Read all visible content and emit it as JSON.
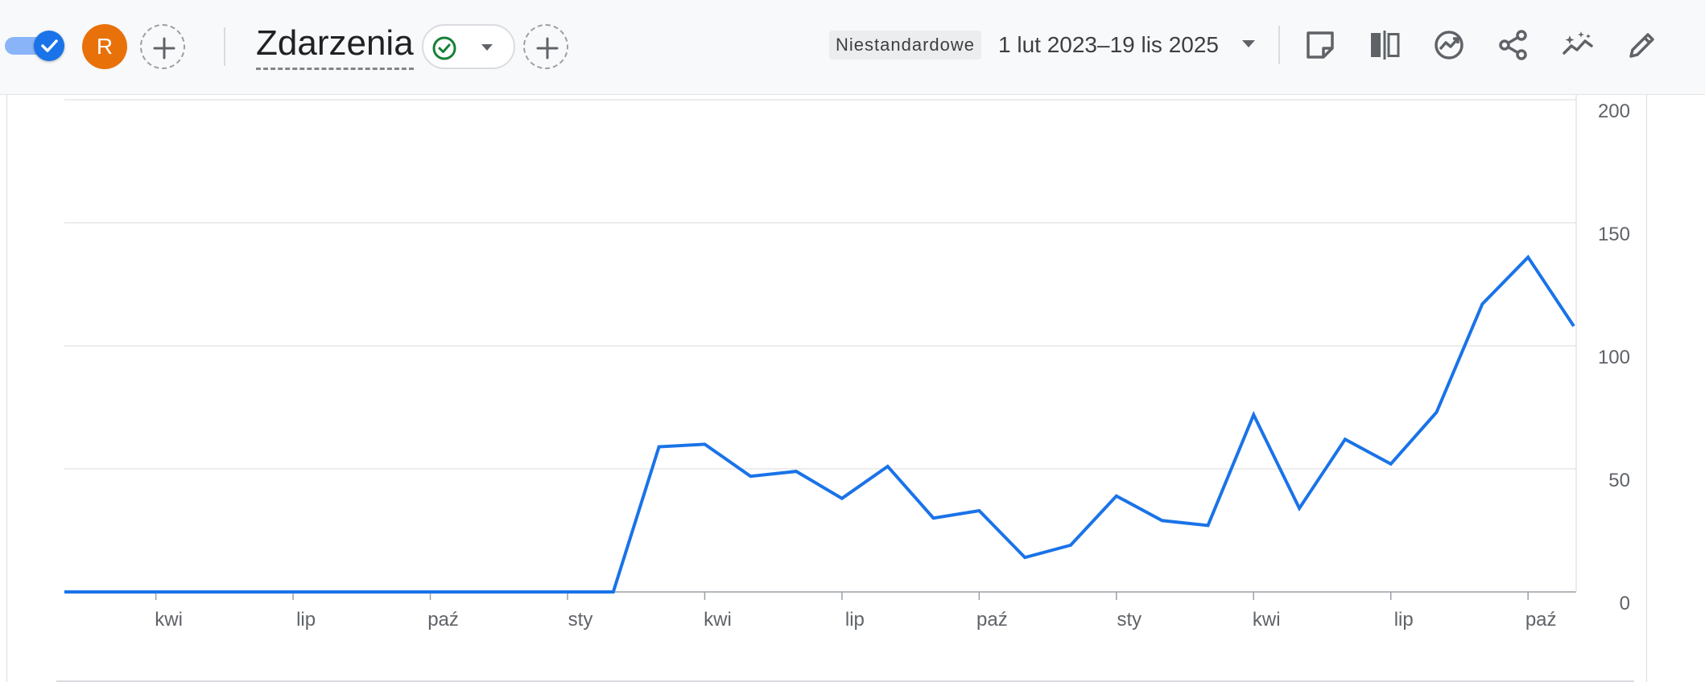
{
  "header": {
    "avatar_letter": "R",
    "title": "Zdarzenia",
    "date_preset": "Niestandardowe",
    "date_range": "1 lut 2023–19 lis 2025"
  },
  "icons": {
    "toggle": "toggle-on-check-icon",
    "add": "add-circle-icon",
    "status": "check-circle-icon",
    "caret": "caret-down-icon",
    "note": "note-icon",
    "compare": "compare-columns-icon",
    "insights": "insights-icon",
    "share": "share-icon",
    "anomaly": "trend-sparkle-icon",
    "edit": "pencil-icon"
  },
  "colors": {
    "accent": "#1a73e8",
    "avatar": "#e8710a",
    "status_ok": "#188038",
    "line": "#1a73e8",
    "grid": "#e0e0e0"
  },
  "chart_data": {
    "type": "line",
    "x_tick_labels": [
      "kwi",
      "lip",
      "paź",
      "sty",
      "kwi",
      "lip",
      "paź",
      "sty",
      "kwi",
      "lip",
      "paź"
    ],
    "y_tick_labels": [
      "0",
      "50",
      "100",
      "150",
      "200"
    ],
    "ylim": [
      0,
      200
    ],
    "grid": true,
    "y_axis_position": "right",
    "series": [
      {
        "values": [
          0,
          0,
          0,
          0,
          0,
          0,
          0,
          0,
          0,
          0,
          0,
          0,
          0,
          59,
          60,
          47,
          49,
          38,
          51,
          30,
          33,
          14,
          19,
          39,
          29,
          27,
          72,
          34,
          62,
          52,
          73,
          117,
          136,
          108
        ]
      }
    ]
  }
}
